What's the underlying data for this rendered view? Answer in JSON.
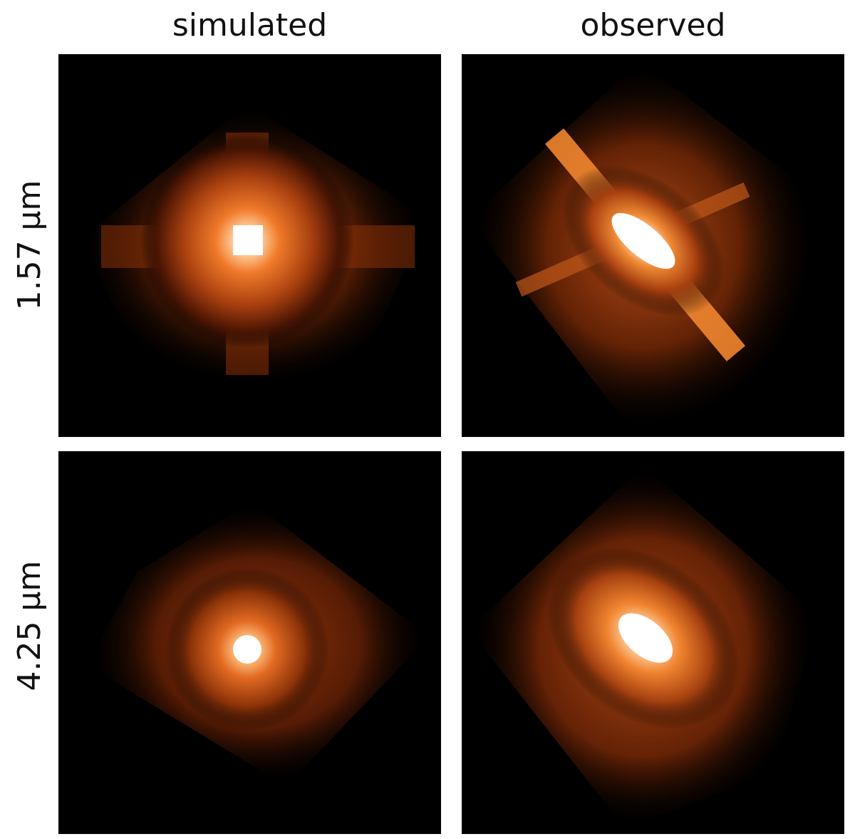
{
  "columns": [
    "simulated",
    "observed"
  ],
  "rows": [
    "1.57 µm",
    "4.25 µm"
  ],
  "panels": [
    {
      "row": 0,
      "col": 0,
      "image": "simulated 1.57 µm emission: bright compact core with cross-shaped halo on a black background"
    },
    {
      "row": 0,
      "col": 1,
      "image": "observed 1.57 µm emission: elongated bright core along a diagonal streak with radial spikes"
    },
    {
      "row": 1,
      "col": 0,
      "image": "simulated 4.25 µm emission: compact bright core inside a mottled diamond-shaped halo"
    },
    {
      "row": 1,
      "col": 1,
      "image": "observed 4.25 µm emission: elongated bright core inside a mottled diamond-shaped halo"
    }
  ],
  "colormap": [
    "#000000",
    "#3a0d00",
    "#7a2a05",
    "#c0501a",
    "#f08030",
    "#ffb070",
    "#ffffff"
  ]
}
